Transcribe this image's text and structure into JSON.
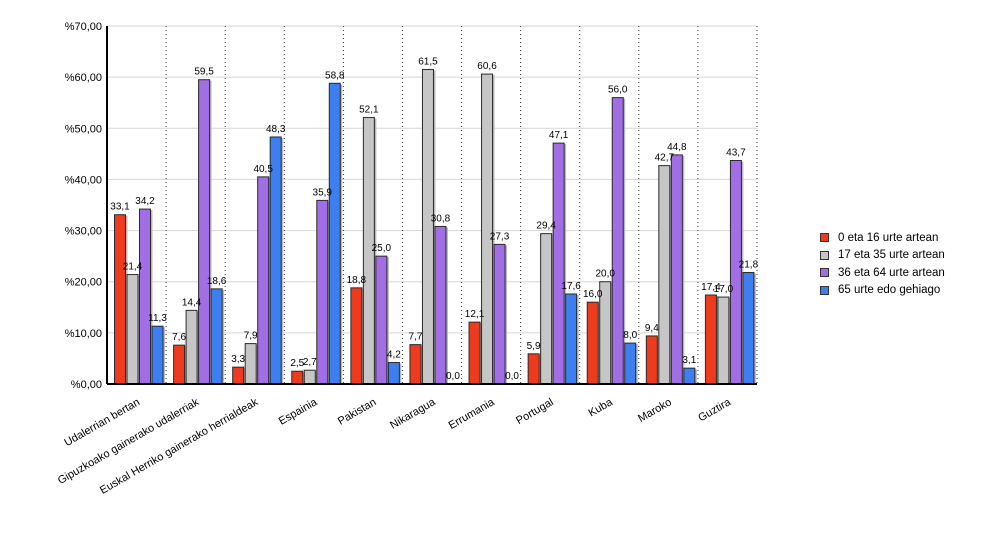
{
  "chart_data": {
    "type": "bar",
    "title": "",
    "xlabel": "",
    "ylabel": "",
    "ylim": [
      0,
      70
    ],
    "yticks": [
      "%0,00",
      "%10,00",
      "%20,00",
      "%30,00",
      "%40,00",
      "%50,00",
      "%60,00",
      "%70,00"
    ],
    "grid": "horizontal solid, vertical dotted between categories",
    "legend_position": "right",
    "categories": [
      "Udalerrian bertan",
      "Gipuzkoako gainerako udalerriak",
      "Euskal Herriko gainerako herrialdeak",
      "Espainia",
      "Pakistan",
      "Nikaragua",
      "Errumania",
      "Portugal",
      "Kuba",
      "Maroko",
      "Guztira"
    ],
    "series": [
      {
        "name": "0 eta 16 urte artean",
        "color": "#ee3b1e",
        "values": [
          33.1,
          7.6,
          3.3,
          2.5,
          18.8,
          7.7,
          12.1,
          5.9,
          16.0,
          9.4,
          17.4
        ],
        "labels": [
          "33,1",
          "7,6",
          "3,3",
          "2,5",
          "18,8",
          "7,7",
          "12,1",
          "5,9",
          "16,0",
          "9,4",
          "17,4"
        ]
      },
      {
        "name": "17 eta 35 urte artean",
        "color": "#c6c6c6",
        "values": [
          21.4,
          14.4,
          7.9,
          2.7,
          52.1,
          61.5,
          60.6,
          29.4,
          20.0,
          42.7,
          17.0
        ],
        "labels": [
          "21,4",
          "14,4",
          "7,9",
          "2,7",
          "52,1",
          "61,5",
          "60,6",
          "29,4",
          "20,0",
          "42,7",
          "17,0"
        ]
      },
      {
        "name": "36 eta 64 urte artean",
        "color": "#a16ee6",
        "values": [
          34.2,
          59.5,
          40.5,
          35.9,
          25.0,
          30.8,
          27.3,
          47.1,
          56.0,
          44.8,
          43.7
        ],
        "labels": [
          "34,2",
          "59,5",
          "40,5",
          "35,9",
          "25,0",
          "30,8",
          "27,3",
          "47,1",
          "56,0",
          "44,8",
          "43,7"
        ]
      },
      {
        "name": "65 urte edo gehiago",
        "color": "#3d7ef0",
        "values": [
          11.3,
          18.6,
          48.3,
          58.8,
          4.2,
          0.0,
          0.0,
          17.6,
          8.0,
          3.1,
          21.8
        ],
        "labels": [
          "11,3",
          "18,6",
          "48,3",
          "58,8",
          "4,2",
          "0,0",
          "0,0",
          "17,6",
          "8,0",
          "3,1",
          "21,8"
        ]
      }
    ]
  }
}
